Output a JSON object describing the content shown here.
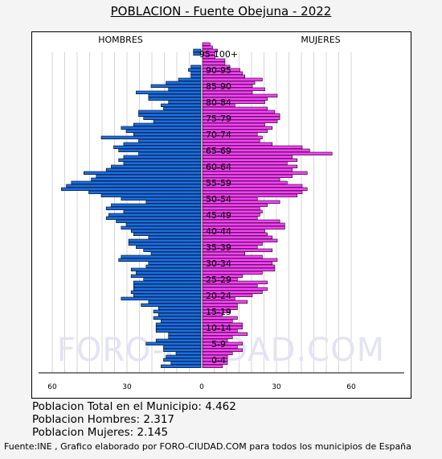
{
  "title": "POBLACION - Fuente Obejuna - 2022",
  "watermark": "FORO-CIUDAD.COM",
  "stats": {
    "total": "Poblacion Total en el Municipio: 4.462",
    "men": "Poblacion Hombres: 2.317",
    "women": "Poblacion Mujeres: 2.145"
  },
  "source": "Fuente:INE , Grafico elaborado por FORO-CIUDAD.COM para todos los municipios de España",
  "chart_data": {
    "type": "bar",
    "orientation": "horizontal",
    "subtype": "population-pyramid",
    "title": "POBLACION - Fuente Obejuna - 2022",
    "series": [
      {
        "name": "HOMBRES",
        "color": "#1a6fe6",
        "values": [
          16,
          12,
          15,
          14,
          10,
          15,
          15,
          22,
          18,
          13,
          13,
          18,
          18,
          18,
          16,
          19,
          17,
          19,
          17,
          24,
          21,
          32,
          27,
          28,
          27,
          27,
          27,
          23,
          28,
          26,
          28,
          22,
          21,
          33,
          32,
          20,
          23,
          26,
          29,
          29,
          21,
          27,
          28,
          32,
          30,
          34,
          38,
          37,
          31,
          38,
          36,
          22,
          32,
          40,
          45,
          56,
          54,
          52,
          44,
          42,
          47,
          38,
          36,
          31,
          33,
          31,
          25,
          33,
          35,
          31,
          25,
          40,
          27,
          30,
          32,
          27,
          19,
          23,
          25,
          25,
          15,
          16,
          13,
          21,
          21,
          26,
          13,
          20,
          14,
          9,
          4,
          4,
          5,
          4,
          0,
          0,
          0,
          3,
          3,
          0,
          0,
          0,
          0
        ]
      },
      {
        "name": "MUJERES",
        "color": "#ff40ff",
        "values": [
          8,
          10,
          10,
          10,
          12,
          16,
          14,
          16,
          10,
          12,
          18,
          14,
          16,
          16,
          12,
          14,
          8,
          11,
          14,
          14,
          18,
          13,
          20,
          24,
          26,
          22,
          26,
          14,
          16,
          24,
          29,
          29,
          28,
          30,
          24,
          17,
          28,
          22,
          24,
          30,
          28,
          26,
          25,
          33,
          33,
          31,
          22,
          23,
          24,
          23,
          26,
          31,
          22,
          38,
          40,
          42,
          40,
          34,
          31,
          36,
          42,
          36,
          38,
          34,
          38,
          36,
          52,
          43,
          40,
          28,
          23,
          24,
          22,
          26,
          28,
          25,
          30,
          31,
          31,
          29,
          26,
          13,
          25,
          26,
          30,
          20,
          25,
          20,
          21,
          24,
          17,
          16,
          15,
          11,
          9,
          9,
          5,
          5,
          6,
          4,
          3,
          0,
          0
        ]
      }
    ],
    "age_groups": [
      "0-4",
      "5-9",
      "10-14",
      "15-19",
      "20-24",
      "25-29",
      "30-34",
      "35-39",
      "40-44",
      "45-49",
      "50-54",
      "55-59",
      "60-64",
      "65-69",
      "70-74",
      "75-79",
      "80-84",
      "85-90",
      "90-95",
      "95-100+"
    ],
    "x_ticks": [
      60,
      30,
      0,
      30,
      60
    ],
    "xlim": [
      -60,
      60
    ],
    "header_left": "HOMBRES",
    "header_right": "MUJERES"
  }
}
